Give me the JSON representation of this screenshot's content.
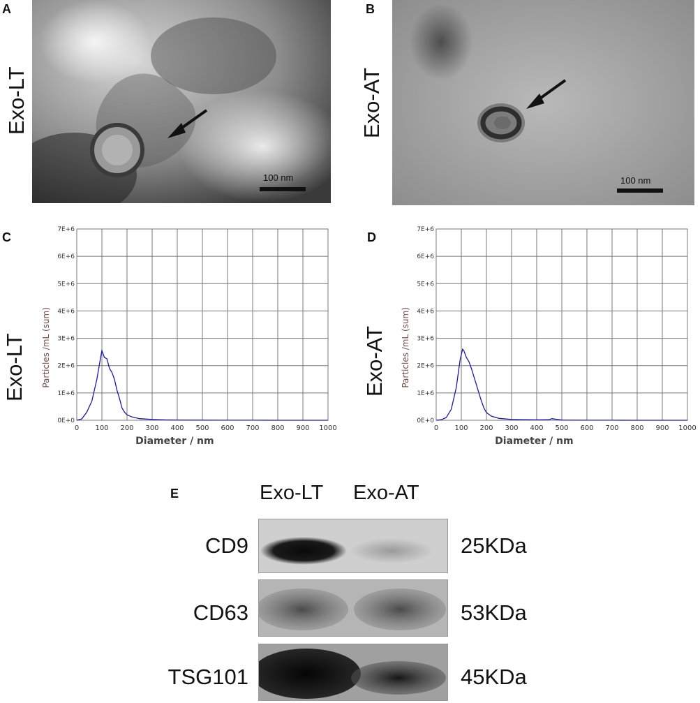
{
  "panels": {
    "A": {
      "letter": "A",
      "side_label": "Exo-LT",
      "scale": "100 nm"
    },
    "B": {
      "letter": "B",
      "side_label": "Exo-AT",
      "scale": "100 nm"
    },
    "C": {
      "letter": "C",
      "side_label": "Exo-LT"
    },
    "D": {
      "letter": "D",
      "side_label": "Exo-AT"
    },
    "E": {
      "letter": "E"
    }
  },
  "chart_data": [
    {
      "type": "line",
      "panel": "C",
      "xlabel": "Diameter / nm",
      "ylabel": "Particles /mL (sum)",
      "xlim": [
        0,
        1000
      ],
      "ylim": [
        0,
        7000000
      ],
      "xticks": [
        "0",
        "100",
        "200",
        "300",
        "400",
        "500",
        "600",
        "700",
        "800",
        "900",
        "1000"
      ],
      "yticks": [
        "0E+0",
        "1E+6",
        "2E+6",
        "3E+6",
        "4E+6",
        "5E+6",
        "6E+6",
        "7E+6"
      ],
      "grid": true,
      "color": "#1a1aa6",
      "series": [
        {
          "x": [
            0,
            20,
            40,
            60,
            80,
            95,
            100,
            110,
            120,
            130,
            140,
            150,
            160,
            170,
            180,
            190,
            200,
            220,
            250,
            300,
            350,
            400,
            500,
            600,
            700,
            800,
            900,
            1000
          ],
          "y": [
            0,
            50000,
            300000,
            700000,
            1500000,
            2300000,
            2550000,
            2300000,
            2250000,
            1900000,
            1750000,
            1500000,
            1100000,
            800000,
            450000,
            300000,
            200000,
            120000,
            60000,
            30000,
            15000,
            10000,
            5000,
            3000,
            2000,
            1000,
            500,
            0
          ]
        }
      ]
    },
    {
      "type": "line",
      "panel": "D",
      "xlabel": "Diameter / nm",
      "ylabel": "Particles /mL (sum)",
      "xlim": [
        0,
        1000
      ],
      "ylim": [
        0,
        7000000
      ],
      "xticks": [
        "0",
        "100",
        "200",
        "300",
        "400",
        "500",
        "600",
        "700",
        "800",
        "900",
        "1000"
      ],
      "yticks": [
        "0E+0",
        "1E+6",
        "2E+6",
        "3E+6",
        "4E+6",
        "5E+6",
        "6E+6",
        "7E+6"
      ],
      "grid": true,
      "color": "#1a1aa6",
      "series": [
        {
          "x": [
            0,
            20,
            40,
            60,
            80,
            95,
            105,
            110,
            120,
            130,
            140,
            150,
            160,
            170,
            180,
            190,
            200,
            220,
            250,
            300,
            350,
            400,
            450,
            460,
            500,
            600,
            700,
            800,
            900,
            1000
          ],
          "y": [
            0,
            20000,
            100000,
            400000,
            1200000,
            2200000,
            2600000,
            2550000,
            2300000,
            2150000,
            1900000,
            1600000,
            1300000,
            1000000,
            700000,
            450000,
            280000,
            150000,
            70000,
            30000,
            20000,
            15000,
            20000,
            60000,
            8000,
            3000,
            2000,
            1000,
            500,
            0
          ]
        }
      ]
    }
  ],
  "western_blot": {
    "lanes": [
      "Exo-LT",
      "Exo-AT"
    ],
    "rows": [
      {
        "label": "CD9",
        "mw": "25KDa"
      },
      {
        "label": "CD63",
        "mw": "53KDa"
      },
      {
        "label": "TSG101",
        "mw": "45KDa"
      }
    ]
  }
}
